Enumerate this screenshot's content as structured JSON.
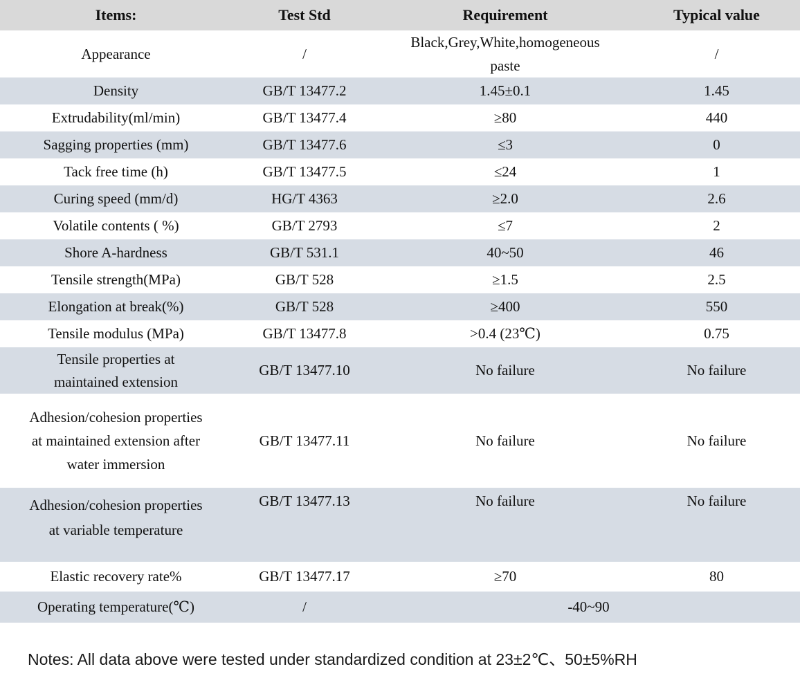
{
  "colors": {
    "header_bg": "#d9d9d9",
    "alt_row_bg": "#d6dce4",
    "text": "#111111",
    "page_bg": "#ffffff"
  },
  "table": {
    "headers": [
      "Items:",
      "Test Std",
      "Requirement",
      "Typical value"
    ],
    "rows": [
      {
        "item": "Appearance",
        "std": "/",
        "req": "Black,Grey,White,homogeneous paste",
        "typ": "/"
      },
      {
        "item": "Density",
        "std": "GB/T 13477.2",
        "req": "1.45±0.1",
        "typ": "1.45"
      },
      {
        "item": "Extrudability(ml/min)",
        "std": "GB/T 13477.4",
        "req": "≥80",
        "typ": "440"
      },
      {
        "item": "Sagging properties (mm)",
        "std": "GB/T 13477.6",
        "req": "≤3",
        "typ": "0"
      },
      {
        "item": "Tack free time (h)",
        "std": "GB/T 13477.5",
        "req": "≤24",
        "typ": "1"
      },
      {
        "item": "Curing speed (mm/d)",
        "std": "HG/T 4363",
        "req": "≥2.0",
        "typ": "2.6"
      },
      {
        "item": "Volatile contents ( %)",
        "std": "GB/T 2793",
        "req": "≤7",
        "typ": "2"
      },
      {
        "item": "Shore A-hardness",
        "std": "GB/T 531.1",
        "req": "40~50",
        "typ": "46"
      },
      {
        "item": "Tensile strength(MPa)",
        "std": "GB/T 528",
        "req": "≥1.5",
        "typ": "2.5"
      },
      {
        "item": "Elongation at break(%)",
        "std": "GB/T 528",
        "req": "≥400",
        "typ": "550"
      },
      {
        "item": "Tensile modulus (MPa)",
        "std": "GB/T 13477.8",
        "req": ">0.4 (23℃)",
        "typ": "0.75"
      },
      {
        "item": "Tensile properties at maintained extension",
        "std": "GB/T 13477.10",
        "req": "No failure",
        "typ": "No failure"
      },
      {
        "item": "Adhesion/cohesion properties at maintained extension after water immersion",
        "std": "GB/T 13477.11",
        "req": "No failure",
        "typ": "No failure"
      },
      {
        "item": "Adhesion/cohesion properties at variable temperature",
        "std": "GB/T 13477.13",
        "req": "No failure",
        "typ": "No failure"
      },
      {
        "item": "Elastic recovery rate%",
        "std": "GB/T 13477.17",
        "req": "≥70",
        "typ": "80"
      },
      {
        "item": "Operating temperature(℃)",
        "std": "/",
        "req": "-40~90"
      }
    ]
  },
  "notes": "Notes: All data above were tested under standardized condition at 23±2℃、50±5%RH"
}
